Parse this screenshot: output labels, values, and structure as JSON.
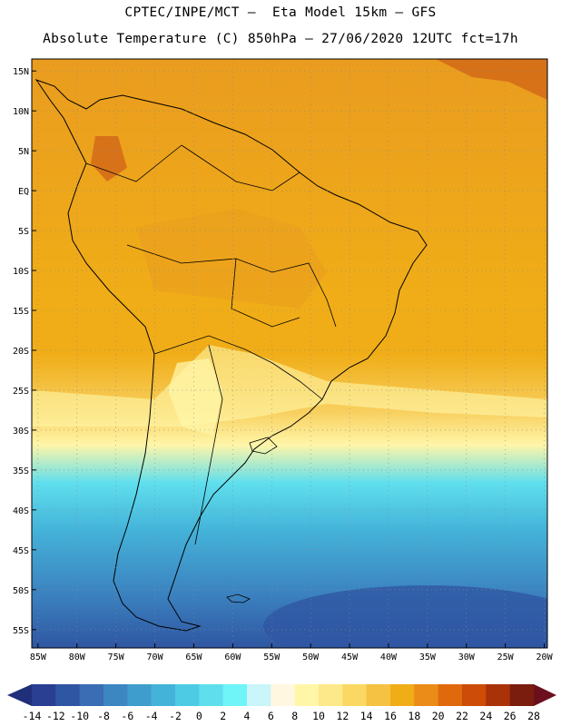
{
  "header": {
    "line1": "CPTEC/INPE/MCT –  Eta Model 15km – GFS",
    "line2": "Absolute Temperature (C) 850hPa – 27/06/2020 12UTC fct=17h"
  },
  "axes": {
    "lat_labels": [
      "15N",
      "10N",
      "5N",
      "EQ",
      "5S",
      "10S",
      "15S",
      "20S",
      "25S",
      "30S",
      "35S",
      "40S",
      "45S",
      "50S",
      "55S"
    ],
    "lon_labels": [
      "85W",
      "80W",
      "75W",
      "70W",
      "65W",
      "60W",
      "55W",
      "50W",
      "45W",
      "40W",
      "35W",
      "30W",
      "25W",
      "20W"
    ]
  },
  "colorbar": {
    "labels": [
      "-14",
      "-12",
      "-10",
      "-8",
      "-6",
      "-4",
      "-2",
      "0",
      "2",
      "4",
      "6",
      "8",
      "10",
      "12",
      "14",
      "16",
      "18",
      "20",
      "22",
      "24",
      "26",
      "28"
    ],
    "colors": [
      "#2a3f92",
      "#2f56a2",
      "#3a6db3",
      "#3c86c2",
      "#3f9dcd",
      "#44b3d9",
      "#4ecbe4",
      "#5fdfee",
      "#6ff4f8",
      "#c9f5fb",
      "#fff7e0",
      "#fff6a8",
      "#fde98a",
      "#fbd863",
      "#f6c243",
      "#f0ad17",
      "#ea8c17",
      "#e0690e",
      "#cc4c08",
      "#a93208",
      "#7a1c0e"
    ],
    "low_color": "#1f2f7a",
    "high_color": "#6b0f1e"
  },
  "field_colors": {
    "tropics_warm": "#ea9c1f",
    "tropics_hot": "#d36a17",
    "subtropics": "#f0ad17",
    "mid_warm": "#f8d060",
    "transition": "#fff6a8",
    "cool": "#5fdfee",
    "cold": "#44b3d9",
    "colder": "#3c86c2",
    "coldest": "#2f56a2"
  }
}
